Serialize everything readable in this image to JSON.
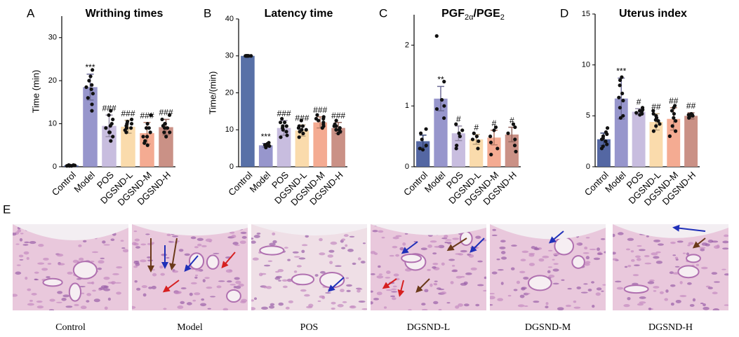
{
  "chart_data": [
    {
      "type": "bar",
      "panel": "A",
      "title_parts": [
        "Writhing times"
      ],
      "y_label": "Time (min)",
      "categories": [
        "Control",
        "Model",
        "POS",
        "DGSND-L",
        "DGSND-M",
        "DGSND-H"
      ],
      "values": [
        0.3,
        18.5,
        9.5,
        9.3,
        7.8,
        9.2
      ],
      "errors": [
        0.1,
        3,
        2.5,
        1.5,
        2.5,
        1.8
      ],
      "annotations": [
        null,
        "***",
        "###",
        "###",
        "###",
        "###"
      ],
      "points": [
        [
          0.2,
          0.3,
          0.2,
          0.4,
          0.3,
          0.2,
          0.3,
          0.4
        ],
        [
          22.5,
          21,
          19,
          18,
          17,
          16,
          20,
          14.5,
          13,
          18.5
        ],
        [
          13,
          12,
          11,
          10,
          9,
          8,
          7,
          6,
          9.5,
          8
        ],
        [
          11,
          10,
          10,
          9,
          9,
          9,
          8.5,
          9.5,
          10.5,
          8
        ],
        [
          12,
          10,
          9,
          8,
          7,
          6,
          5,
          7,
          9,
          5.5
        ],
        [
          12,
          11,
          10,
          9,
          9,
          8,
          7,
          9.5,
          10,
          8
        ]
      ],
      "colors": [
        "#4b5f9e",
        "#9190c9",
        "#c5b9dd",
        "#fad9a8",
        "#f3a68c",
        "#c78b80"
      ],
      "ylim": [
        0,
        35
      ],
      "yticks": [
        0,
        10,
        20,
        30
      ],
      "grid": false
    },
    {
      "type": "bar",
      "panel": "B",
      "title_parts": [
        "Latency time"
      ],
      "y_label": "Time/(min)",
      "categories": [
        "Control",
        "Model",
        "POS",
        "DGSND-L",
        "DGSND-M",
        "DGSND-H"
      ],
      "values": [
        30,
        5.8,
        10.5,
        9.8,
        12,
        10.5
      ],
      "errors": [
        0.2,
        0.5,
        2,
        1.5,
        1.5,
        1.5
      ],
      "annotations": [
        null,
        "***",
        "###",
        "###",
        "###",
        "###"
      ],
      "points": [
        [
          30,
          30,
          30,
          30,
          30,
          30,
          30,
          30
        ],
        [
          6.5,
          6,
          5.8,
          5.5,
          5.2,
          6.2,
          5.6,
          5.9,
          6
        ],
        [
          13,
          12,
          11,
          10.5,
          10,
          9.5,
          8.5,
          8,
          11,
          12
        ],
        [
          12.5,
          11,
          10.5,
          10,
          9.5,
          9,
          8,
          10,
          11
        ],
        [
          14,
          13.5,
          13,
          12,
          11.5,
          11,
          10.5,
          12.5,
          13
        ],
        [
          12.5,
          11.5,
          11,
          10,
          10,
          9.5,
          9,
          10.5,
          11
        ]
      ],
      "colors": [
        "#4f68a2",
        "#9190c9",
        "#c5b9dd",
        "#fad9a8",
        "#f3a68c",
        "#c78b80"
      ],
      "ylim": [
        0,
        40
      ],
      "yticks": [
        0,
        10,
        20,
        30,
        40
      ],
      "grid": false
    },
    {
      "type": "bar",
      "panel": "C",
      "title_parts": [
        "PGF",
        "2α",
        "/PGE",
        "2"
      ],
      "y_label": null,
      "categories": [
        "Control",
        "Model",
        "POS",
        "DGSND-L",
        "DGSND-M",
        "DGSND-H"
      ],
      "values": [
        0.42,
        1.12,
        0.55,
        0.45,
        0.48,
        0.53
      ],
      "errors": [
        0.1,
        0.2,
        0.12,
        0.08,
        0.12,
        0.12
      ],
      "annotations": [
        null,
        "**",
        "#",
        "#",
        "#",
        "#"
      ],
      "points": [
        [
          0.62,
          0.55,
          0.45,
          0.35,
          0.3,
          0.28
        ],
        [
          2.15,
          1.4,
          1.1,
          1.0,
          0.95,
          0.8
        ],
        [
          0.7,
          0.6,
          0.55,
          0.5,
          0.35,
          0.3
        ],
        [
          0.55,
          0.5,
          0.45,
          0.42,
          0.3
        ],
        [
          0.65,
          0.6,
          0.5,
          0.4,
          0.3,
          0.2
        ],
        [
          0.7,
          0.65,
          0.55,
          0.45,
          0.35,
          0.25
        ]
      ],
      "colors": [
        "#4b5f9e",
        "#9190c9",
        "#c5b9dd",
        "#fad9a8",
        "#f3a68c",
        "#c78b80"
      ],
      "ylim": [
        0,
        2.5
      ],
      "yticks": [
        0,
        1,
        2
      ],
      "grid": false
    },
    {
      "type": "bar",
      "panel": "D",
      "title_parts": [
        "Uterus index"
      ],
      "y_label": null,
      "categories": [
        "Control",
        "Model",
        "POS",
        "DGSND-L",
        "DGSND-M",
        "DGSND-H"
      ],
      "values": [
        2.7,
        6.7,
        5.4,
        4.4,
        4.7,
        5
      ],
      "errors": [
        0.6,
        2,
        0.3,
        0.8,
        1.1,
        0.3
      ],
      "annotations": [
        null,
        "***",
        "#",
        "##",
        "##",
        "##"
      ],
      "points": [
        [
          3.8,
          3.4,
          3,
          2.7,
          2.5,
          2.2,
          2,
          1.8,
          2.8,
          3.2
        ],
        [
          8.8,
          8.5,
          7.2,
          6.5,
          5.8,
          5,
          4.8,
          6.8,
          8
        ],
        [
          5.8,
          5.6,
          5.5,
          5.4,
          5.2,
          5.3,
          5.1
        ],
        [
          5.5,
          5,
          4.8,
          4.5,
          4.2,
          4,
          3.5,
          4.6,
          5.2
        ],
        [
          6,
          5.8,
          5.2,
          4.8,
          4.5,
          4,
          3.5,
          3,
          5.5
        ],
        [
          5.2,
          5.1,
          5,
          4.9,
          4.8,
          5.1
        ]
      ],
      "colors": [
        "#4b5f9e",
        "#9190c9",
        "#c5b9dd",
        "#fad9a8",
        "#f3a68c",
        "#c78b80"
      ],
      "ylim": [
        0,
        15
      ],
      "yticks": [
        0,
        5,
        10,
        15
      ],
      "grid": false
    }
  ],
  "histology": {
    "panel": "E",
    "groups": [
      "Control",
      "Model",
      "POS",
      "DGSND-L",
      "DGSND-M",
      "DGSND-H"
    ]
  }
}
